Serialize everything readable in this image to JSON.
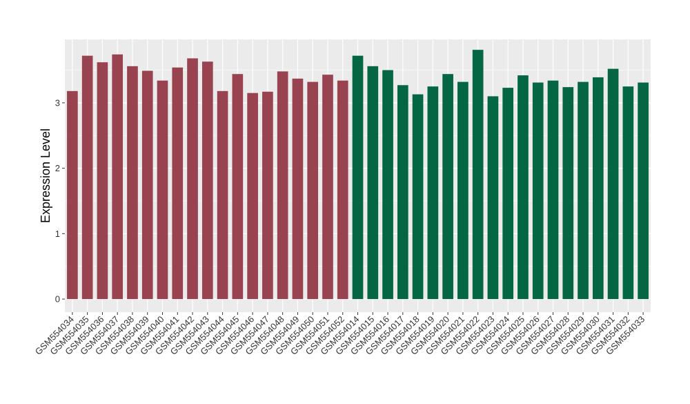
{
  "chart_data": {
    "type": "bar",
    "title": "",
    "xlabel": "",
    "ylabel": "Expression Level",
    "ylim": [
      -0.2,
      3.97
    ],
    "yticks": [
      0,
      1,
      2,
      3
    ],
    "grid": true,
    "legend": "none",
    "background_color": "#ebebeb",
    "grid_color": "#ffffff",
    "group_colors": [
      "#9a4350",
      "#046642"
    ],
    "categories": [
      "GSM554034",
      "GSM554035",
      "GSM554036",
      "GSM554037",
      "GSM554038",
      "GSM554039",
      "GSM554040",
      "GSM554041",
      "GSM554042",
      "GSM554043",
      "GSM554044",
      "GSM554045",
      "GSM554046",
      "GSM554047",
      "GSM554048",
      "GSM554049",
      "GSM554050",
      "GSM554051",
      "GSM554052",
      "GSM554014",
      "GSM554015",
      "GSM554016",
      "GSM554017",
      "GSM554018",
      "GSM554019",
      "GSM554020",
      "GSM554021",
      "GSM554022",
      "GSM554023",
      "GSM554024",
      "GSM554025",
      "GSM554026",
      "GSM554027",
      "GSM554028",
      "GSM554029",
      "GSM554030",
      "GSM554031",
      "GSM554032",
      "GSM554033"
    ],
    "values": [
      3.18,
      3.72,
      3.62,
      3.74,
      3.56,
      3.49,
      3.34,
      3.54,
      3.68,
      3.63,
      3.18,
      3.44,
      3.15,
      3.17,
      3.48,
      3.37,
      3.32,
      3.43,
      3.34,
      3.72,
      3.56,
      3.5,
      3.27,
      3.13,
      3.25,
      3.44,
      3.32,
      3.81,
      3.1,
      3.23,
      3.42,
      3.31,
      3.34,
      3.24,
      3.32,
      3.39,
      3.52,
      3.25,
      3.31
    ],
    "group": [
      0,
      0,
      0,
      0,
      0,
      0,
      0,
      0,
      0,
      0,
      0,
      0,
      0,
      0,
      0,
      0,
      0,
      0,
      0,
      1,
      1,
      1,
      1,
      1,
      1,
      1,
      1,
      1,
      1,
      1,
      1,
      1,
      1,
      1,
      1,
      1,
      1,
      1,
      1
    ]
  }
}
